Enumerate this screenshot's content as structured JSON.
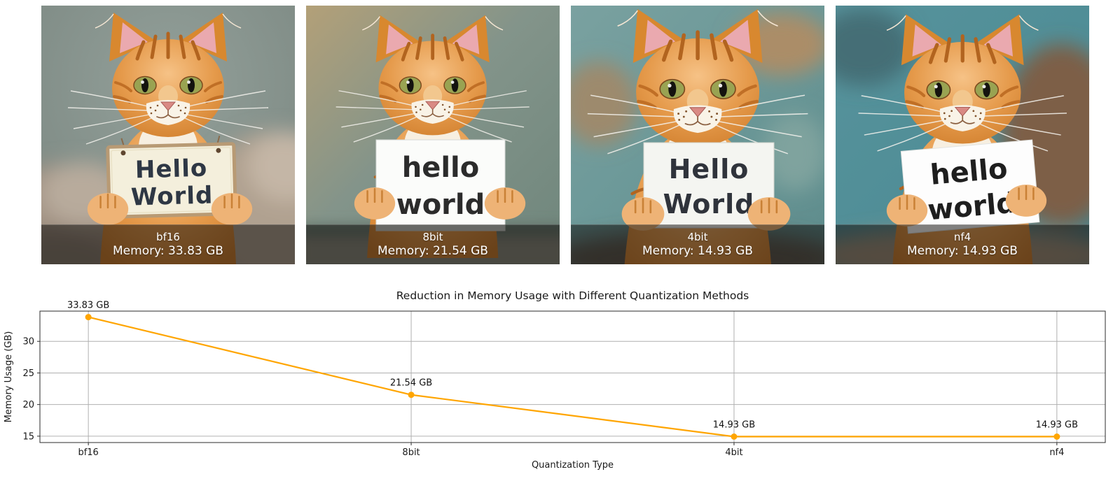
{
  "figure": {
    "background": "#ffffff"
  },
  "panels": [
    {
      "label": "bf16",
      "memory_label": "Memory: 33.83 GB",
      "sign_line1": "Hello",
      "sign_line2": "World"
    },
    {
      "label": "8bit",
      "memory_label": "Memory: 21.54 GB",
      "sign_line1": "hello",
      "sign_line2": "world"
    },
    {
      "label": "4bit",
      "memory_label": "Memory: 14.93 GB",
      "sign_line1": "Hello",
      "sign_line2": "World"
    },
    {
      "label": "nf4",
      "memory_label": "Memory: 14.93 GB",
      "sign_line1": "hello",
      "sign_line2": "world"
    }
  ],
  "chart_data": {
    "type": "line",
    "title": "Reduction in Memory Usage with Different Quantization Methods",
    "xlabel": "Quantization Type",
    "ylabel": "Memory Usage (GB)",
    "categories": [
      "bf16",
      "8bit",
      "4bit",
      "nf4"
    ],
    "values": [
      33.83,
      21.54,
      14.93,
      14.93
    ],
    "point_labels": [
      "33.83 GB",
      "21.54 GB",
      "14.93 GB",
      "14.93 GB"
    ],
    "yticks": [
      15,
      20,
      25,
      30
    ],
    "ylim": [
      13.99,
      34.78
    ],
    "grid": true,
    "legend": "none",
    "line_color": "#FFA500",
    "grid_color": "#b0b0b0"
  }
}
